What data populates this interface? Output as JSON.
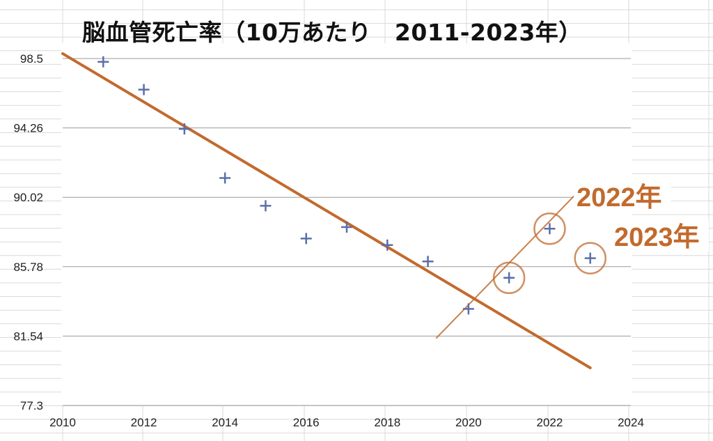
{
  "colors": {
    "marker": "#5a6ea8",
    "trend": "#c26a2d",
    "annotation": "#c26a2d",
    "gridline": "#9a9a9a",
    "sheet_grid": "#d9d9d9"
  },
  "chart_data": {
    "type": "scatter",
    "title": "脳血管死亡率（10万あたり　2011-2023年）",
    "xlabel": "",
    "ylabel": "",
    "xlim": [
      2010,
      2024
    ],
    "ylim": [
      77.3,
      98.5
    ],
    "x_ticks": [
      "2010",
      "2012",
      "2014",
      "2016",
      "2018",
      "2020",
      "2022",
      "2024"
    ],
    "y_ticks": [
      "98.5",
      "94.26",
      "90.02",
      "85.78",
      "81.54",
      "77.3"
    ],
    "grid": true,
    "marker": "plus",
    "series": [
      {
        "points": [
          {
            "x": 2011,
            "y": 98.3
          },
          {
            "x": 2012,
            "y": 96.6
          },
          {
            "x": 2013,
            "y": 94.2
          },
          {
            "x": 2014,
            "y": 91.2
          },
          {
            "x": 2015,
            "y": 89.5
          },
          {
            "x": 2016,
            "y": 87.5
          },
          {
            "x": 2017,
            "y": 88.2
          },
          {
            "x": 2018,
            "y": 87.1
          },
          {
            "x": 2019,
            "y": 86.1
          },
          {
            "x": 2020,
            "y": 83.2
          },
          {
            "x": 2021,
            "y": 85.1
          },
          {
            "x": 2022,
            "y": 88.1
          },
          {
            "x": 2023,
            "y": 86.3
          }
        ]
      }
    ],
    "trendline": {
      "from": {
        "x": 2010,
        "y": 98.8
      },
      "to": {
        "x": 2023,
        "y": 79.6
      }
    },
    "trendline_short": {
      "from": {
        "x": 2019.2,
        "y": 81.4
      },
      "to": {
        "x": 2022.6,
        "y": 90.1
      }
    },
    "highlighted": [
      {
        "x": 2021,
        "y": 85.1
      },
      {
        "x": 2022,
        "y": 88.1
      },
      {
        "x": 2023,
        "y": 86.3
      }
    ],
    "annotations": [
      {
        "text": "2022年",
        "target_x": 2022
      },
      {
        "text": "2023年",
        "target_x": 2023
      }
    ]
  }
}
